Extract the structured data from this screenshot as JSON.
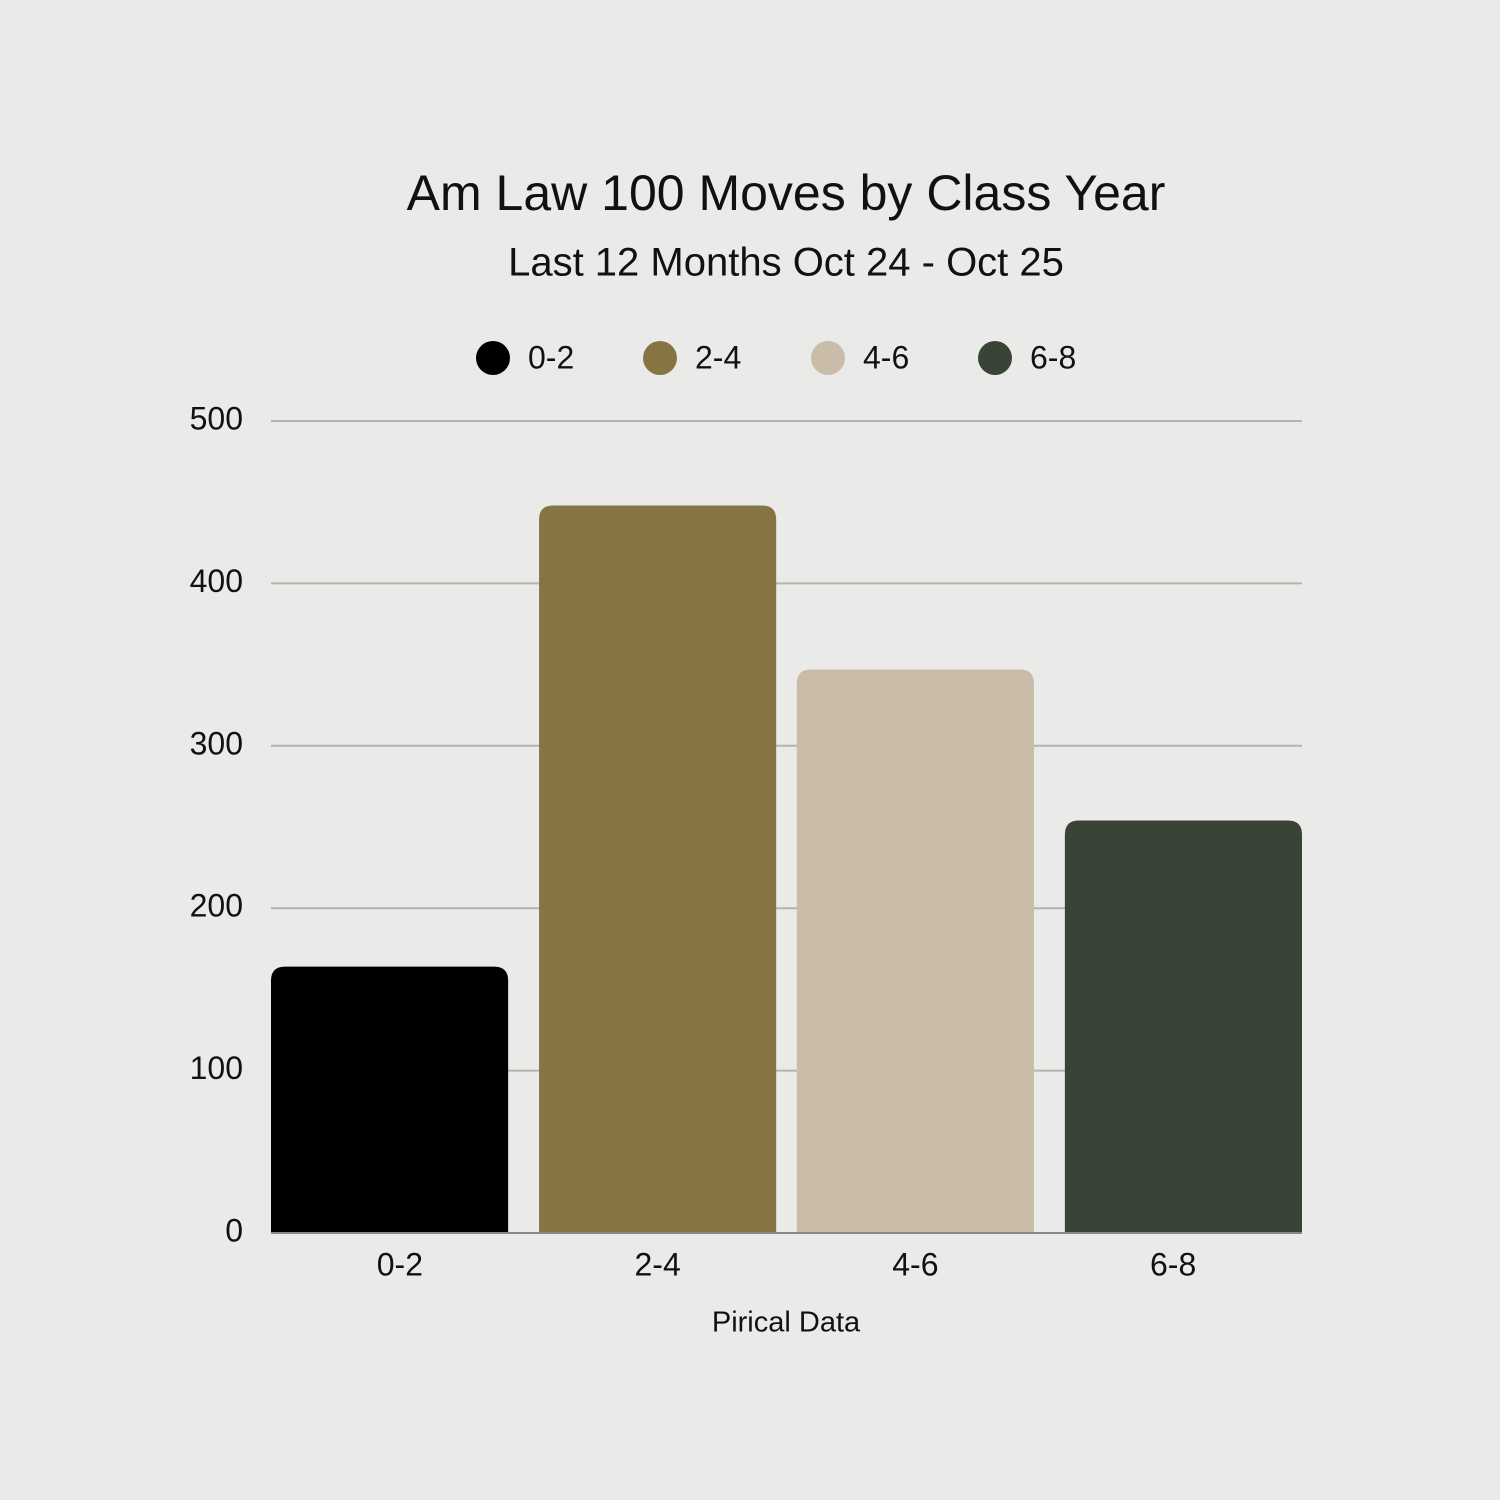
{
  "chart_data": {
    "type": "bar",
    "title": "Am Law 100 Moves by Class Year",
    "subtitle": "Last 12 Months Oct 24 - Oct 25",
    "x_label": "Pirical Data",
    "categories": [
      "0-2",
      "2-4",
      "4-6",
      "6-8"
    ],
    "values": [
      164,
      448,
      347,
      254
    ],
    "colors": [
      "#000000",
      "#877445",
      "#c9bca9",
      "#394437"
    ],
    "ylim": [
      0,
      500
    ],
    "yticks": [
      0,
      100,
      200,
      300,
      400,
      500
    ],
    "grid": true,
    "legend": "top"
  }
}
